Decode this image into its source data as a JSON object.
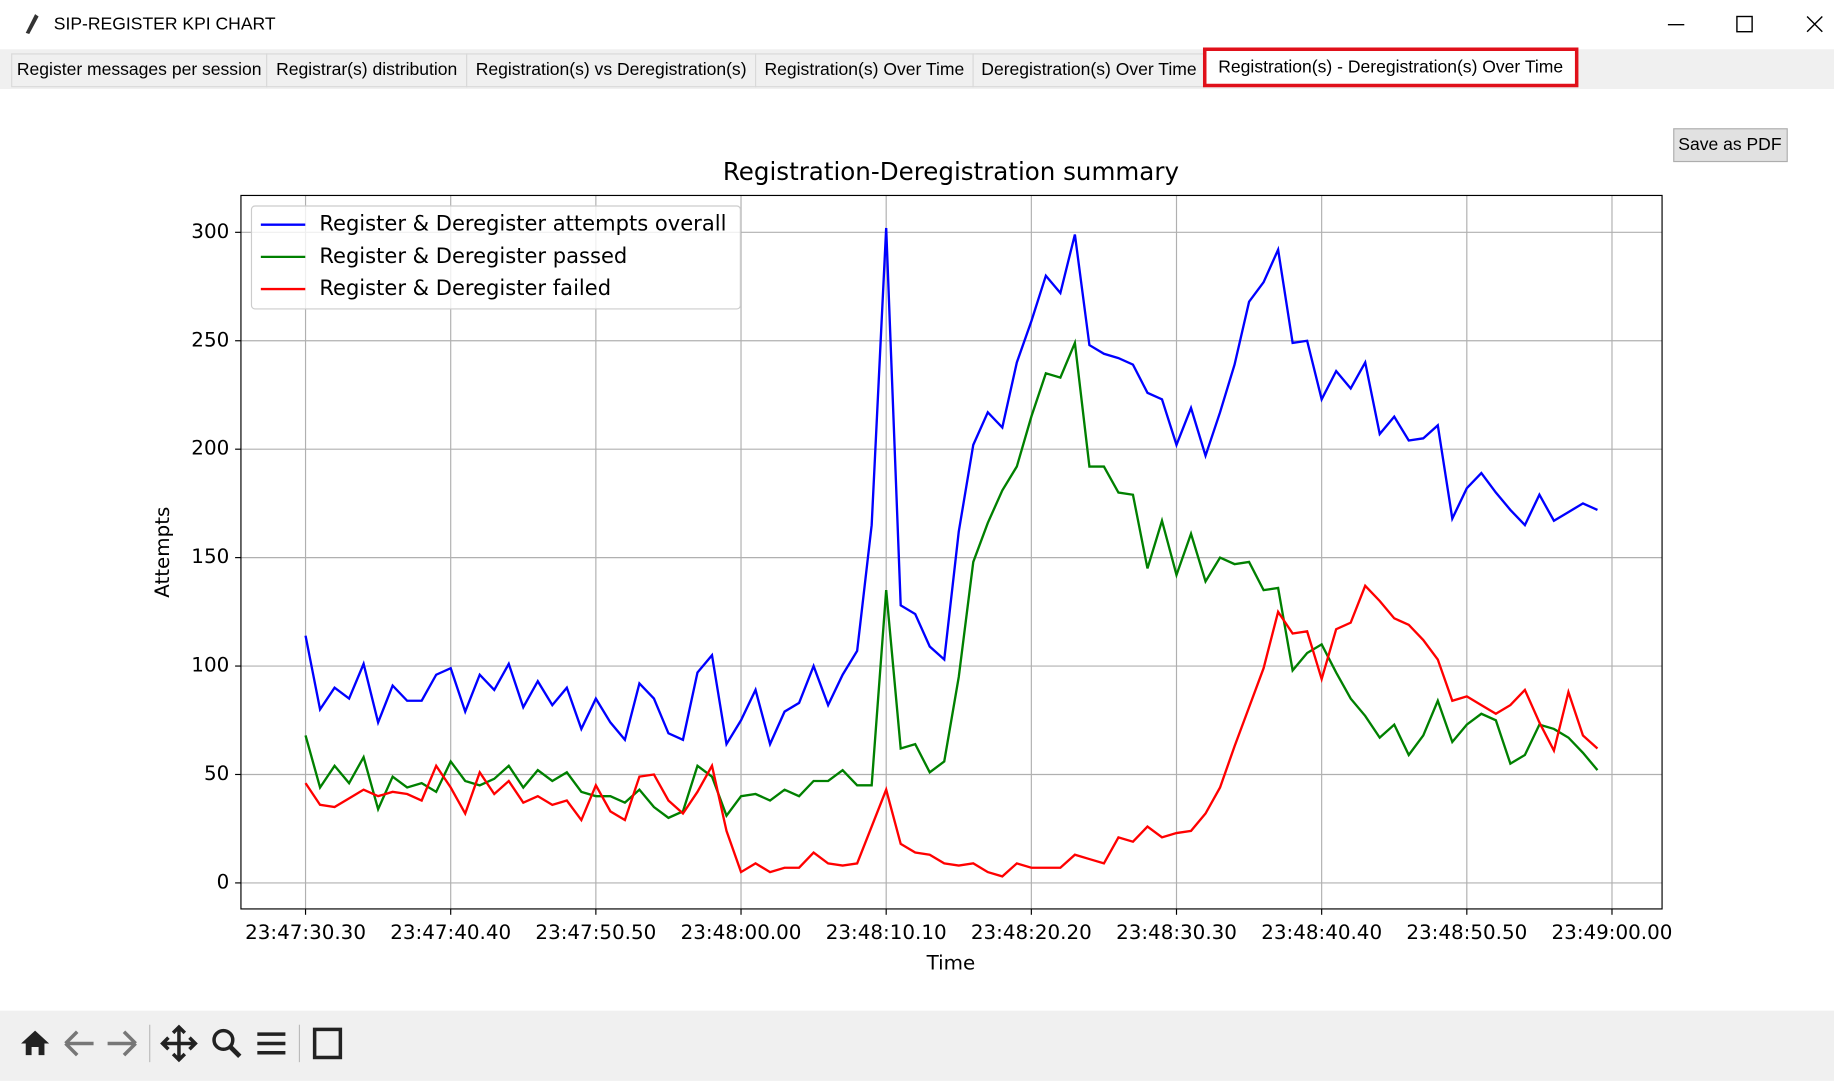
{
  "window": {
    "title": "SIP-REGISTER KPI CHART"
  },
  "tabs": {
    "items": [
      "Register messages per session",
      "Registrar(s) distribution",
      "Registration(s) vs Deregistration(s)",
      "Registration(s) Over Time",
      "Deregistration(s) Over Time",
      "Registration(s) - Deregistration(s) Over Time"
    ],
    "selected": 5
  },
  "button": "Save as PDF",
  "chart_data": {
    "type": "line",
    "title": "Registration-Deregistration summary",
    "xlabel": "Time",
    "ylabel": "Attempts",
    "x": [
      0,
      1,
      2,
      3,
      4,
      5,
      6,
      7,
      8,
      9,
      10,
      11,
      12,
      13,
      14,
      15,
      16,
      17,
      18,
      19,
      20,
      21,
      22,
      23,
      24,
      25,
      26,
      27,
      28,
      29,
      30,
      31,
      32,
      33,
      34,
      35,
      36,
      37,
      38,
      39,
      40,
      41,
      42,
      43,
      44,
      45,
      46,
      47,
      48,
      49,
      50,
      51,
      52,
      53,
      54,
      55,
      56,
      57,
      58,
      59,
      60,
      61,
      62,
      63,
      64,
      65,
      66,
      67,
      68,
      69,
      70,
      71,
      72,
      73,
      74,
      75,
      76,
      77,
      78,
      79,
      80,
      81,
      82,
      83,
      84,
      85,
      86,
      87,
      88,
      89
    ],
    "series": [
      {
        "name": "Register & Deregister attempts overall",
        "color": "#0000ff",
        "values": [
          114,
          80,
          90,
          85,
          101,
          74,
          91,
          84,
          84,
          96,
          99,
          79,
          96,
          89,
          101,
          81,
          93,
          82,
          90,
          71,
          85,
          74,
          66,
          92,
          85,
          69,
          66,
          97,
          105,
          64,
          75,
          89,
          64,
          79,
          83,
          100,
          82,
          96,
          107,
          165,
          302,
          128,
          124,
          109,
          103,
          162,
          202,
          217,
          210,
          240,
          259,
          280,
          272,
          299,
          248,
          244,
          242,
          239,
          226,
          223,
          202,
          219,
          197,
          217,
          239,
          268,
          277,
          292,
          249,
          250,
          223,
          236,
          228,
          240,
          207,
          215,
          204,
          205,
          211,
          168,
          182,
          189,
          180,
          172,
          165,
          179,
          167,
          171,
          175,
          172
        ]
      },
      {
        "name": "Register & Deregister passed",
        "color": "#008000",
        "values": [
          68,
          44,
          54,
          46,
          58,
          34,
          49,
          44,
          46,
          42,
          56,
          47,
          45,
          48,
          54,
          44,
          52,
          47,
          51,
          42,
          40,
          40,
          37,
          43,
          35,
          30,
          33,
          54,
          49,
          31,
          40,
          41,
          38,
          43,
          40,
          47,
          47,
          52,
          45,
          45,
          135,
          62,
          64,
          51,
          56,
          95,
          148,
          166,
          181,
          192,
          215,
          235,
          233,
          249,
          192,
          192,
          180,
          179,
          145,
          167,
          142,
          161,
          139,
          150,
          147,
          148,
          135,
          136,
          98,
          106,
          110,
          97,
          85,
          77,
          67,
          73,
          59,
          68,
          84,
          65,
          73,
          78,
          75,
          55,
          59,
          73,
          71,
          67,
          60,
          52
        ]
      },
      {
        "name": "Register & Deregister failed",
        "color": "#ff0000",
        "values": [
          46,
          36,
          35,
          39,
          43,
          40,
          42,
          41,
          38,
          54,
          44,
          32,
          51,
          41,
          47,
          37,
          40,
          36,
          38,
          29,
          45,
          33,
          29,
          49,
          50,
          38,
          32,
          42,
          54,
          24,
          5,
          9,
          5,
          7,
          7,
          14,
          9,
          8,
          9,
          26,
          43,
          18,
          14,
          13,
          9,
          8,
          9,
          5,
          3,
          9,
          7,
          7,
          7,
          13,
          11,
          9,
          21,
          19,
          26,
          21,
          23,
          24,
          32,
          44,
          63,
          81,
          99,
          125,
          115,
          116,
          94,
          117,
          120,
          137,
          130,
          122,
          119,
          112,
          103,
          84,
          86,
          82,
          78,
          82,
          89,
          74,
          61,
          88,
          68,
          62
        ]
      }
    ],
    "xlim": [
      -4.45,
      93.45
    ],
    "xticks": [
      {
        "value": 0,
        "label": "23:47:30.30"
      },
      {
        "value": 10,
        "label": "23:47:40.40"
      },
      {
        "value": 20,
        "label": "23:47:50.50"
      },
      {
        "value": 30,
        "label": "23:48:00.00"
      },
      {
        "value": 40,
        "label": "23:48:10.10"
      },
      {
        "value": 50,
        "label": "23:48:20.20"
      },
      {
        "value": 60,
        "label": "23:48:30.30"
      },
      {
        "value": 70,
        "label": "23:48:40.40"
      },
      {
        "value": 80,
        "label": "23:48:50.50"
      },
      {
        "value": 90,
        "label": "23:49:00.00"
      }
    ],
    "ylim": [
      -12,
      317
    ],
    "yticks": [
      0,
      50,
      100,
      150,
      200,
      250,
      300
    ],
    "grid": true,
    "legend": "upper left"
  }
}
